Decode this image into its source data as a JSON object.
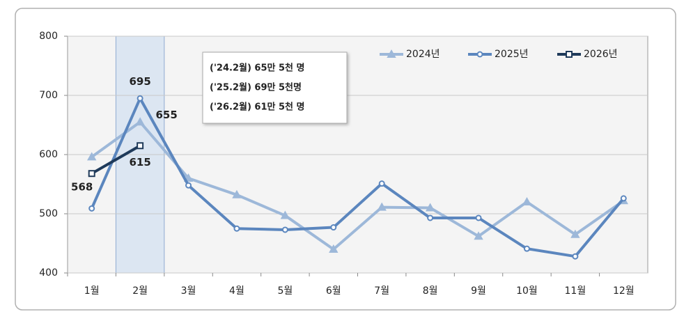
{
  "chart_data": {
    "type": "line",
    "categories": [
      "1월",
      "2월",
      "3월",
      "4월",
      "5월",
      "6월",
      "7월",
      "8월",
      "9월",
      "10월",
      "11월",
      "12월"
    ],
    "series": [
      {
        "name": "2024년",
        "color": "#9db8d9",
        "marker": "triangle",
        "values": [
          596,
          655,
          560,
          532,
          497,
          440,
          511,
          510,
          462,
          520,
          465,
          522
        ],
        "value_labels": [
          null,
          "655",
          null,
          null,
          null,
          null,
          null,
          null,
          null,
          null,
          null,
          null
        ]
      },
      {
        "name": "2025년",
        "color": "#5b86be",
        "marker": "circle",
        "values": [
          509,
          695,
          548,
          475,
          473,
          477,
          551,
          493,
          493,
          441,
          428,
          526
        ],
        "value_labels": [
          null,
          "695",
          null,
          null,
          null,
          null,
          null,
          null,
          null,
          null,
          null,
          null
        ]
      },
      {
        "name": "2026년",
        "color": "#1f3a5a",
        "marker": "square",
        "values": [
          568,
          615,
          null,
          null,
          null,
          null,
          null,
          null,
          null,
          null,
          null,
          null
        ],
        "value_labels": [
          "568",
          "615",
          null,
          null,
          null,
          null,
          null,
          null,
          null,
          null,
          null,
          null
        ]
      }
    ],
    "highlight": "2월",
    "annotations": [
      "('24.2월) 65만 5천 명",
      "('25.2월) 69만 5천명",
      "('26.2월) 61만 5천 명"
    ],
    "ylim": [
      400,
      800
    ],
    "yticks": [
      400,
      500,
      600,
      700,
      800
    ],
    "grid": true,
    "legend": "top-right"
  }
}
